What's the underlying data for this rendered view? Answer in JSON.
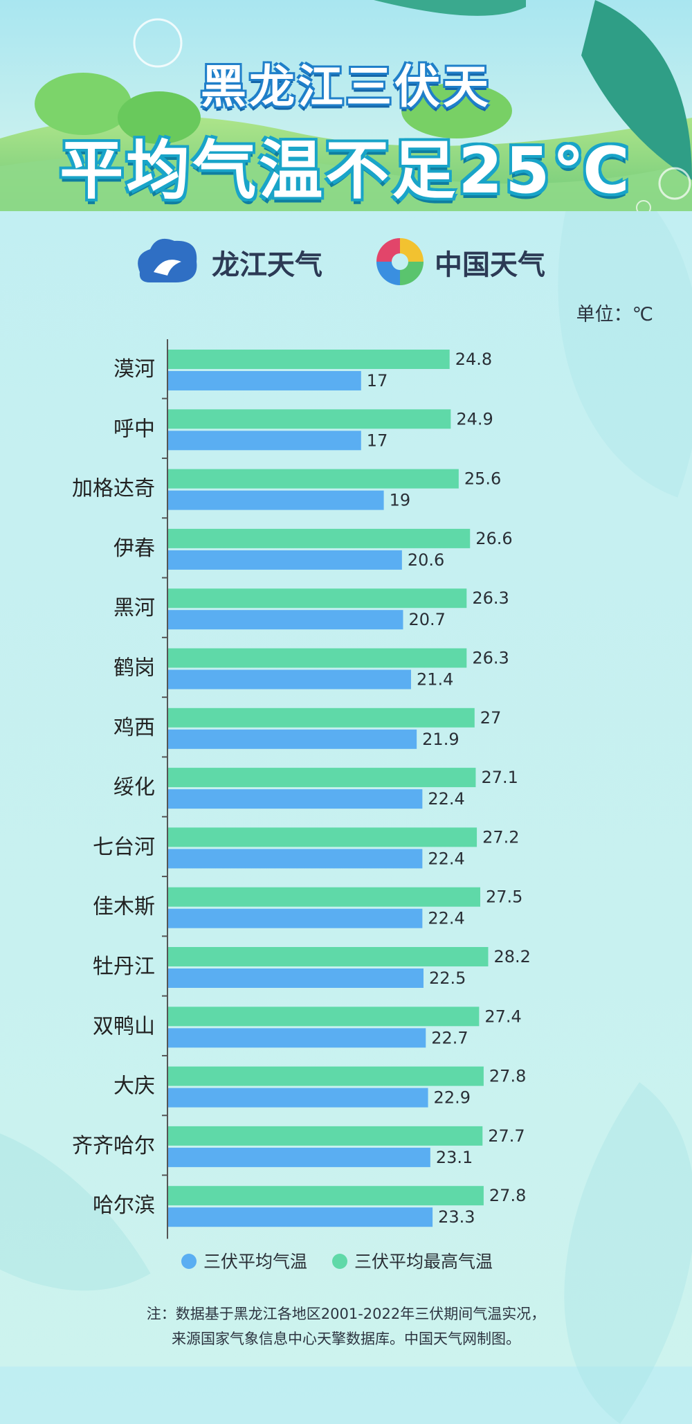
{
  "header": {
    "title_line1": "黑龙江三伏天",
    "title_line2": "平均气温不足25℃"
  },
  "logos": {
    "logo1_label": "龙江天气",
    "logo2_label": "中国天气"
  },
  "unit_label": "单位：℃",
  "chart_data": {
    "type": "bar",
    "orientation": "horizontal",
    "categories": [
      "漠河",
      "呼中",
      "加格达奇",
      "伊春",
      "黑河",
      "鹤岗",
      "鸡西",
      "绥化",
      "七台河",
      "佳木斯",
      "牡丹江",
      "双鸭山",
      "大庆",
      "齐齐哈尔",
      "哈尔滨"
    ],
    "series": [
      {
        "name": "三伏平均最高气温",
        "color": "#5fd9a8",
        "values": [
          24.8,
          24.9,
          25.6,
          26.6,
          26.3,
          26.3,
          27,
          27.1,
          27.2,
          27.5,
          28.2,
          27.4,
          27.8,
          27.7,
          27.8
        ]
      },
      {
        "name": "三伏平均气温",
        "color": "#5aaef2",
        "values": [
          17,
          17,
          19,
          20.6,
          20.7,
          21.4,
          21.9,
          22.4,
          22.4,
          22.4,
          22.5,
          22.7,
          22.9,
          23.1,
          23.3
        ]
      }
    ],
    "legend": {
      "position": "bottom",
      "entries": [
        "三伏平均气温",
        "三伏平均最高气温"
      ]
    },
    "title": "",
    "xlabel": "",
    "ylabel": "",
    "grid": false
  },
  "note": {
    "line1": "注：数据基于黑龙江各地区2001-2022年三伏期间气温实况，",
    "line2": "来源国家气象信息中心天擎数据库。中国天气网制图。"
  }
}
